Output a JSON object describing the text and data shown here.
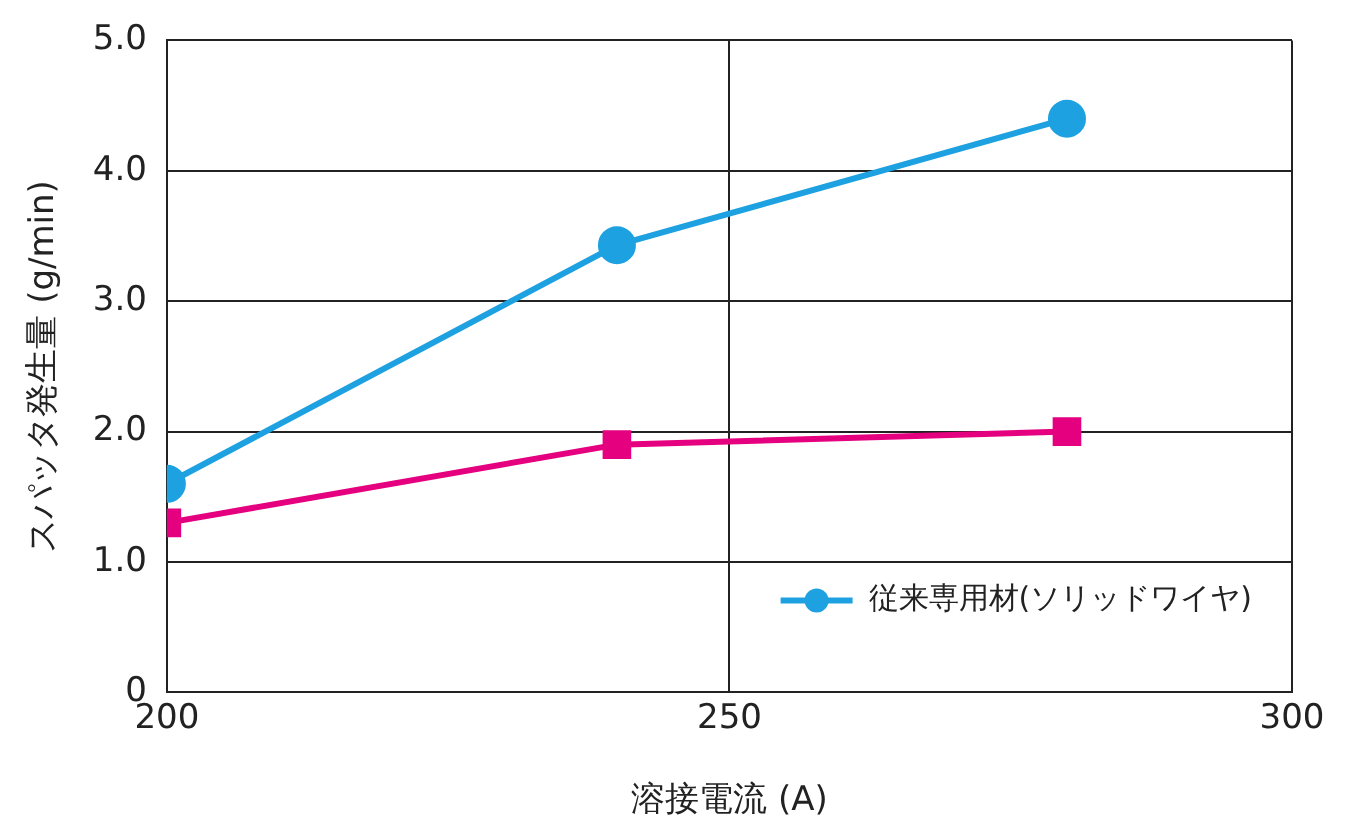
{
  "chart_data": {
    "type": "line",
    "xlabel": "溶接電流 (A)",
    "ylabel": "スパッタ発生量 (g/min)",
    "x": [
      200,
      240,
      280
    ],
    "series": [
      {
        "name": "従来専用材(ソリッドワイヤ)",
        "color": "#1da1e0",
        "marker": "circle",
        "values": [
          1.6,
          3.43,
          4.4
        ]
      },
      {
        "color": "#e4007f",
        "marker": "square",
        "values": [
          1.3,
          1.9,
          2.0
        ]
      }
    ],
    "xlim": [
      200,
      300
    ],
    "xticks": [
      200,
      250,
      300
    ],
    "ylim": [
      0,
      5
    ],
    "yticks": [
      0,
      {
        "value": 1,
        "label": "1.0"
      },
      {
        "value": 2,
        "label": "2.0"
      },
      {
        "value": 3,
        "label": "3.0"
      },
      {
        "value": 4,
        "label": "4.0"
      },
      {
        "value": 5,
        "label": "5.0"
      }
    ],
    "grid": true,
    "legend": "bottom right",
    "line_style": "solid"
  }
}
